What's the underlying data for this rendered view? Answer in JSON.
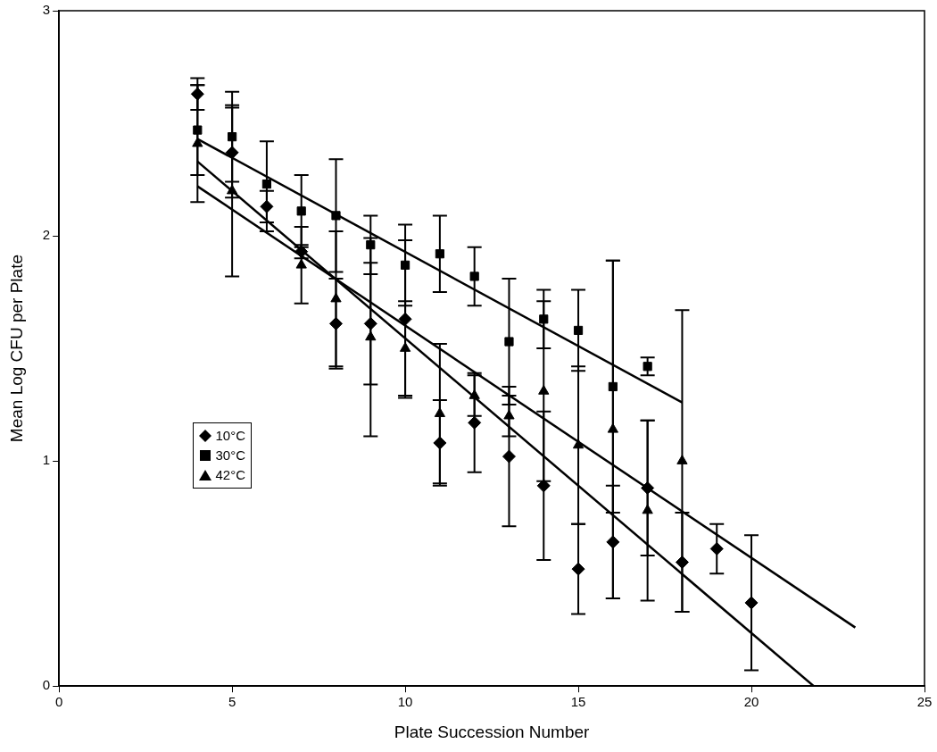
{
  "chart_data": {
    "type": "scatter",
    "xlabel": "Plate Succession Number",
    "ylabel": "Mean Log CFU per Plate",
    "xlim": [
      0,
      25
    ],
    "xticks": [
      0,
      5,
      10,
      15,
      20,
      25
    ],
    "ylim": [
      0,
      3
    ],
    "yticks": [
      0,
      1,
      2,
      3
    ],
    "grid": false,
    "legend": "left",
    "series": [
      {
        "name": "10°C",
        "color": "#000000",
        "marker": "diamond",
        "x": [
          4,
          5,
          6,
          7,
          8,
          9,
          10,
          11,
          12,
          13,
          14,
          15,
          16,
          17,
          18,
          19,
          20
        ],
        "values": [
          2.63,
          2.37,
          2.13,
          1.93,
          1.61,
          1.61,
          1.63,
          1.08,
          1.17,
          1.02,
          0.89,
          0.52,
          0.64,
          0.88,
          0.55,
          0.61,
          0.37
        ],
        "errors": [
          0.07,
          0.2,
          [
            2.06,
            2.2
          ],
          0.03,
          0.2,
          0.27,
          0.35,
          0.19,
          0.22,
          0.31,
          0.33,
          0.2,
          0.25,
          0.3,
          0.22,
          0.11,
          0.3
        ]
      },
      {
        "name": "30°C",
        "color": "#000000",
        "marker": "square",
        "x": [
          4,
          5,
          6,
          7,
          8,
          9,
          10,
          11,
          12,
          13,
          14,
          15,
          16,
          17
        ],
        "values": [
          2.47,
          2.44,
          2.23,
          2.11,
          2.09,
          1.96,
          1.87,
          1.92,
          1.82,
          1.53,
          1.63,
          1.58,
          1.33,
          1.42
        ],
        "errors": [
          0.2,
          0.2,
          [
            2.02,
            2.42
          ],
          0.16,
          0.25,
          0.13,
          0.18,
          0.17,
          0.13,
          0.28,
          0.13,
          0.18,
          0.56,
          0.04
        ]
      },
      {
        "name": "42°C",
        "color": "#000000",
        "marker": "triangle",
        "x": [
          4,
          5,
          6,
          7,
          8,
          9,
          10,
          11,
          12,
          13,
          14,
          15,
          16,
          17,
          18
        ],
        "values": [
          2.41,
          2.2,
          null,
          1.87,
          1.72,
          1.55,
          1.5,
          1.21,
          1.29,
          1.2,
          1.31,
          1.07,
          1.14,
          0.78,
          1.0
        ],
        "errors": [
          0.26,
          0.38,
          null,
          0.17,
          0.3,
          0.44,
          0.21,
          0.31,
          0.09,
          0.09,
          0.4,
          0.35,
          0.75,
          0.4,
          0.67
        ]
      },
      {
        "type": "line",
        "color": "#000000",
        "marker": "none",
        "x": [
          4,
          21.8
        ],
        "values": [
          2.33,
          0
        ]
      },
      {
        "type": "line",
        "color": "#000000",
        "marker": "none",
        "x": [
          4,
          18
        ],
        "values": [
          2.43,
          1.26
        ]
      },
      {
        "type": "line",
        "color": "#000000",
        "marker": "none",
        "x": [
          4,
          23
        ],
        "values": [
          2.22,
          0.26
        ]
      }
    ]
  }
}
